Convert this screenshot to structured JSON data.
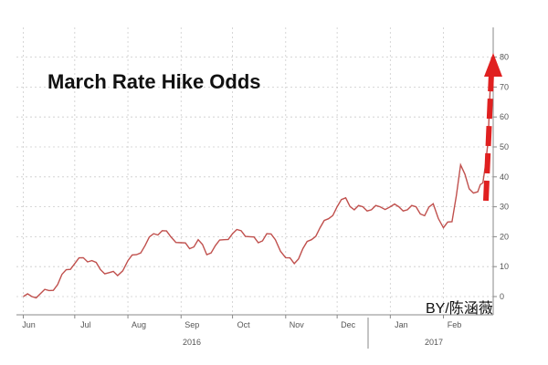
{
  "chart_data": {
    "type": "line",
    "title": "March Rate Hike Odds",
    "xlabel": "",
    "ylabel": "",
    "ylim": [
      0,
      85
    ],
    "yticks": [
      0,
      10,
      20,
      30,
      40,
      50,
      60,
      70,
      80
    ],
    "x_month_labels": [
      "Jun",
      "Jul",
      "Aug",
      "Sep",
      "Oct",
      "Nov",
      "Dec",
      "Jan",
      "Feb"
    ],
    "x_year_labels": [
      "2016",
      "2017"
    ],
    "grid": true,
    "legend": "none",
    "line_color": "#c0504d",
    "arrow_color": "#e02020",
    "watermark": "BY/陈涵薇",
    "x": [
      "2016-06-01",
      "2016-06-06",
      "2016-06-11",
      "2016-06-16",
      "2016-06-21",
      "2016-06-26",
      "2016-07-01",
      "2016-07-06",
      "2016-07-11",
      "2016-07-16",
      "2016-07-21",
      "2016-07-26",
      "2016-08-01",
      "2016-08-06",
      "2016-08-11",
      "2016-08-16",
      "2016-08-21",
      "2016-08-26",
      "2016-09-01",
      "2016-09-06",
      "2016-09-11",
      "2016-09-16",
      "2016-09-21",
      "2016-09-26",
      "2016-10-01",
      "2016-10-06",
      "2016-10-11",
      "2016-10-16",
      "2016-10-21",
      "2016-10-26",
      "2016-11-01",
      "2016-11-06",
      "2016-11-11",
      "2016-11-16",
      "2016-11-21",
      "2016-11-26",
      "2016-12-01",
      "2016-12-06",
      "2016-12-11",
      "2016-12-16",
      "2016-12-21",
      "2016-12-26",
      "2017-01-01",
      "2017-01-06",
      "2017-01-11",
      "2017-01-16",
      "2017-01-21",
      "2017-01-26",
      "2017-02-01",
      "2017-02-06",
      "2017-02-11",
      "2017-02-16",
      "2017-02-21",
      "2017-02-24",
      "2017-02-27"
    ],
    "series": [
      {
        "values": [
          0,
          0,
          1,
          2,
          4,
          9,
          11,
          13,
          12,
          9,
          8,
          7,
          12,
          14,
          17,
          21,
          22,
          20,
          18,
          16,
          19,
          14,
          17,
          19,
          21,
          22,
          20,
          18,
          21,
          19,
          13,
          11,
          16,
          19,
          23,
          26,
          30,
          33,
          29,
          30,
          29,
          30,
          30,
          30,
          29,
          30,
          27,
          31,
          23,
          25,
          44,
          36,
          35,
          38,
          52
        ]
      }
    ]
  }
}
